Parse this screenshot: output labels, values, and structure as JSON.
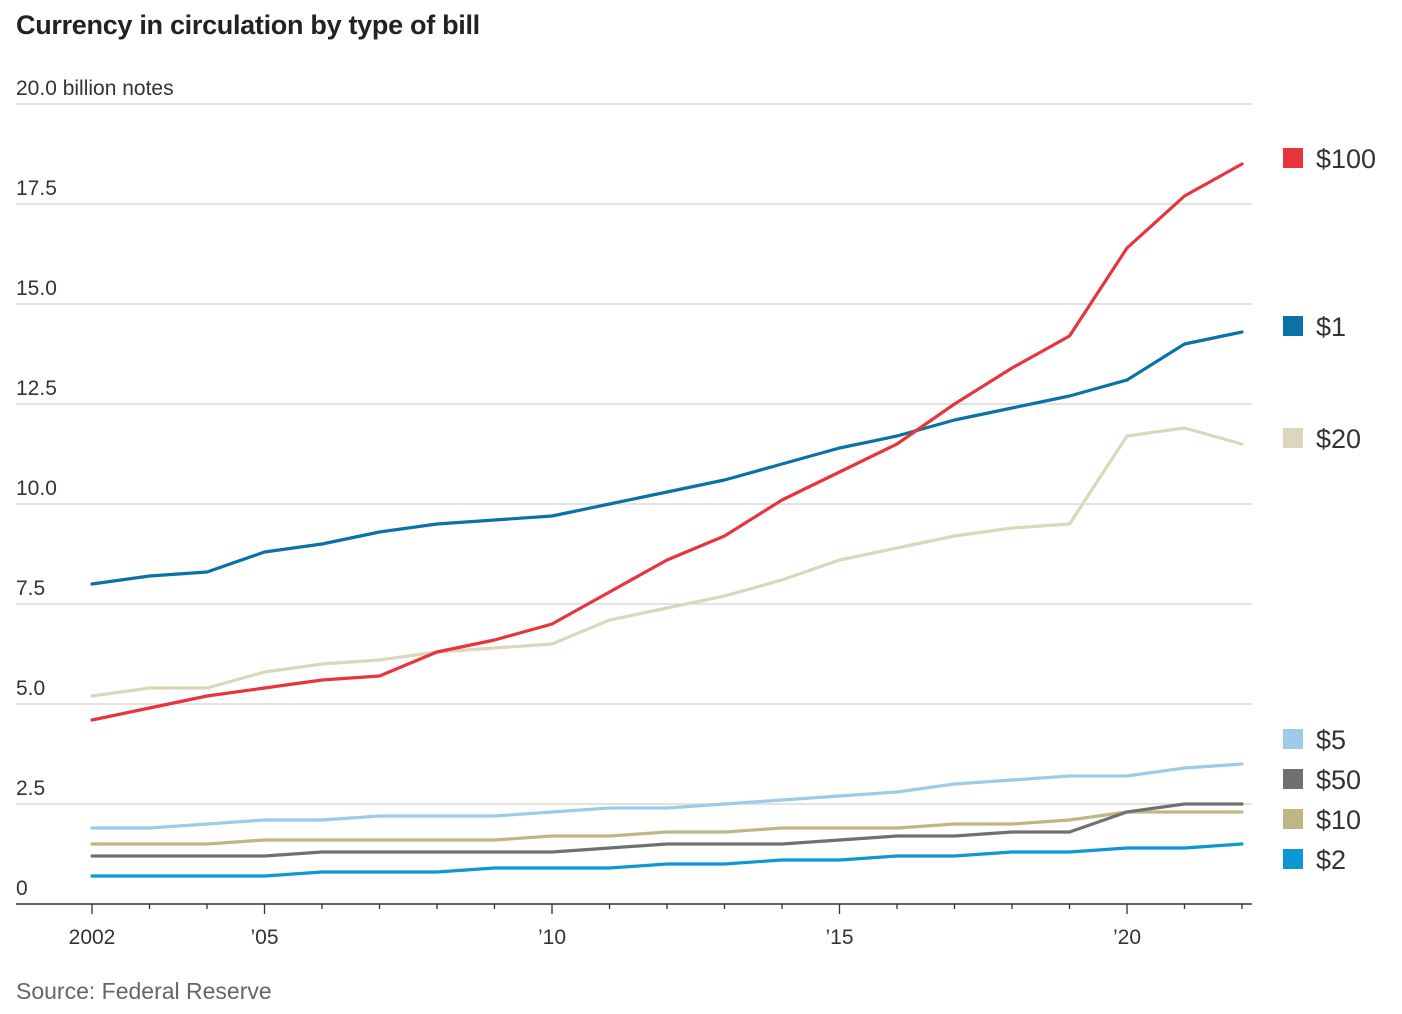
{
  "title": "Currency in circulation by type of bill",
  "source": "Source: Federal Reserve",
  "chart_data": {
    "type": "line",
    "title": "Currency in circulation by type of bill",
    "xlabel": "",
    "ylabel": "billion notes",
    "x": [
      2002,
      2003,
      2004,
      2005,
      2006,
      2007,
      2008,
      2009,
      2010,
      2011,
      2012,
      2013,
      2014,
      2015,
      2016,
      2017,
      2018,
      2019,
      2020,
      2021,
      2022
    ],
    "xlim": [
      2002,
      2022
    ],
    "ylim": [
      0,
      20
    ],
    "grid": true,
    "legend_placement": "right",
    "x_ticks": [
      {
        "value": 2002,
        "label": "2002"
      },
      {
        "value": 2005,
        "label": "’05"
      },
      {
        "value": 2010,
        "label": "’10"
      },
      {
        "value": 2015,
        "label": "’15"
      },
      {
        "value": 2020,
        "label": "’20"
      }
    ],
    "y_ticks": [
      {
        "value": 0,
        "label": "0"
      },
      {
        "value": 2.5,
        "label": "2.5"
      },
      {
        "value": 5,
        "label": "5.0"
      },
      {
        "value": 7.5,
        "label": "7.5"
      },
      {
        "value": 10,
        "label": "10.0"
      },
      {
        "value": 12.5,
        "label": "12.5"
      },
      {
        "value": 15,
        "label": "15.0"
      },
      {
        "value": 17.5,
        "label": "17.5"
      },
      {
        "value": 20,
        "label": "20.0 billion notes"
      }
    ],
    "series": [
      {
        "name": "$100",
        "color": "#e8343d",
        "values": [
          4.6,
          4.9,
          5.2,
          5.4,
          5.6,
          5.7,
          6.3,
          6.6,
          7.0,
          7.8,
          8.6,
          9.2,
          10.1,
          10.8,
          11.5,
          12.5,
          13.4,
          14.2,
          16.4,
          17.7,
          18.5
        ]
      },
      {
        "name": "$1",
        "color": "#0a72a5",
        "values": [
          8.0,
          8.2,
          8.3,
          8.8,
          9.0,
          9.3,
          9.5,
          9.6,
          9.7,
          10.0,
          10.3,
          10.6,
          11.0,
          11.4,
          11.7,
          12.1,
          12.4,
          12.7,
          13.1,
          14.0,
          14.3
        ]
      },
      {
        "name": "$20",
        "color": "#dcd7ba",
        "values": [
          5.2,
          5.4,
          5.4,
          5.8,
          6.0,
          6.1,
          6.3,
          6.4,
          6.5,
          7.1,
          7.4,
          7.7,
          8.1,
          8.6,
          8.9,
          9.2,
          9.4,
          9.5,
          11.7,
          11.9,
          11.5
        ]
      },
      {
        "name": "$5",
        "color": "#9fcbea",
        "values": [
          1.9,
          1.9,
          2.0,
          2.1,
          2.1,
          2.2,
          2.2,
          2.2,
          2.3,
          2.4,
          2.4,
          2.5,
          2.6,
          2.7,
          2.8,
          3.0,
          3.1,
          3.2,
          3.2,
          3.4,
          3.5
        ]
      },
      {
        "name": "$50",
        "color": "#707070",
        "values": [
          1.2,
          1.2,
          1.2,
          1.2,
          1.3,
          1.3,
          1.3,
          1.3,
          1.3,
          1.4,
          1.5,
          1.5,
          1.5,
          1.6,
          1.7,
          1.7,
          1.8,
          1.8,
          2.3,
          2.5,
          2.5
        ]
      },
      {
        "name": "$10",
        "color": "#bfb783",
        "values": [
          1.5,
          1.5,
          1.5,
          1.6,
          1.6,
          1.6,
          1.6,
          1.6,
          1.7,
          1.7,
          1.8,
          1.8,
          1.9,
          1.9,
          1.9,
          2.0,
          2.0,
          2.1,
          2.3,
          2.3,
          2.3
        ]
      },
      {
        "name": "$2",
        "color": "#0d98d4",
        "values": [
          0.7,
          0.7,
          0.7,
          0.7,
          0.8,
          0.8,
          0.8,
          0.9,
          0.9,
          0.9,
          1.0,
          1.0,
          1.1,
          1.1,
          1.2,
          1.2,
          1.3,
          1.3,
          1.4,
          1.4,
          1.5
        ]
      }
    ]
  }
}
